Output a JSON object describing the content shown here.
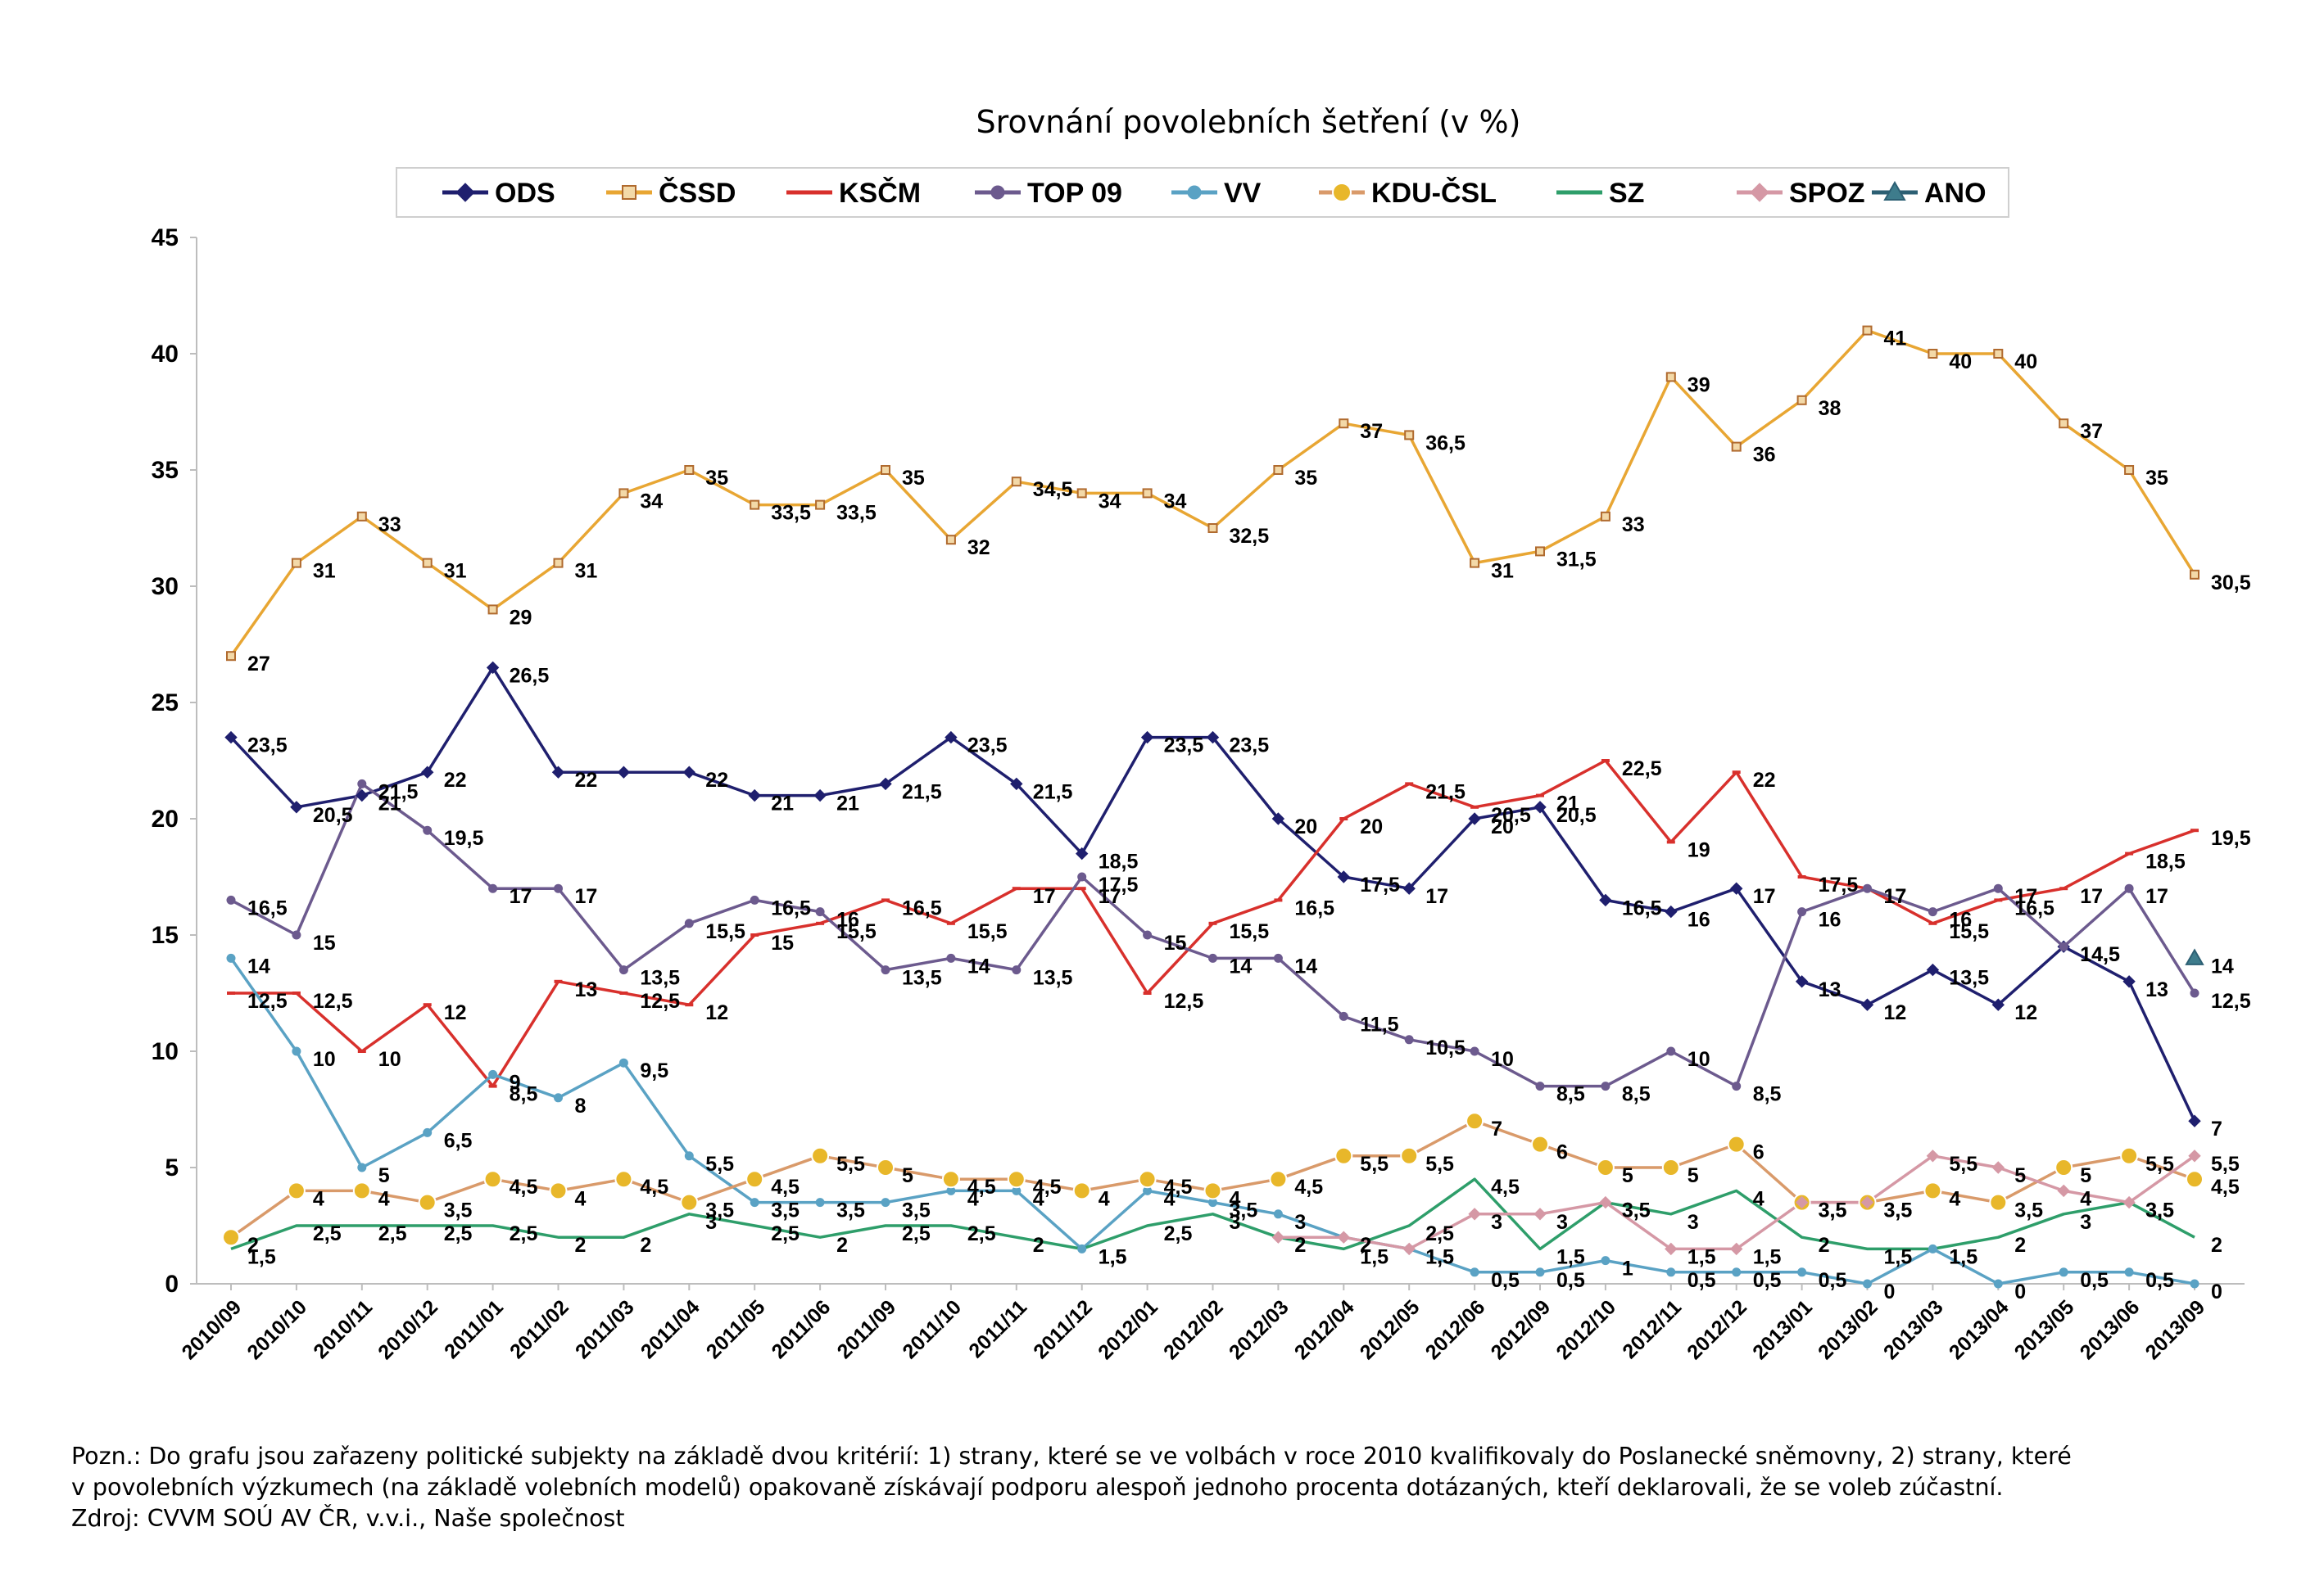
{
  "chart_data": {
    "type": "line",
    "title": "Srovnání povolebních šetření (v %)",
    "ylim": [
      0,
      45
    ],
    "yticks": [
      0,
      5,
      10,
      15,
      20,
      25,
      30,
      35,
      40,
      45
    ],
    "grid": false,
    "legend_position": "top",
    "categories": [
      "2010/09",
      "2010/10",
      "2010/11",
      "2010/12",
      "2011/01",
      "2011/02",
      "2011/03",
      "2011/04",
      "2011/05",
      "2011/06",
      "2011/09",
      "2011/10",
      "2011/11",
      "2011/12",
      "2012/01",
      "2012/02",
      "2012/03",
      "2012/04",
      "2012/05",
      "2012/06",
      "2012/09",
      "2012/10",
      "2012/11",
      "2012/12",
      "2013/01",
      "2013/02",
      "2013/03",
      "2013/04",
      "2013/05",
      "2013/06",
      "2013/09"
    ],
    "series": [
      {
        "name": "ODS",
        "color": "#1f1f6e",
        "marker": "diamond",
        "values": [
          23.5,
          20.5,
          21,
          22,
          26.5,
          22,
          22,
          22,
          21,
          21,
          21.5,
          23.5,
          21.5,
          18.5,
          23.5,
          23.5,
          20,
          17.5,
          17,
          20,
          20.5,
          16.5,
          16,
          17,
          13,
          12,
          13.5,
          12,
          14.5,
          13,
          7
        ],
        "labels": [
          "23,5",
          "20,5",
          "21",
          "22",
          "26,5",
          "22",
          "",
          "22",
          "21",
          "21",
          "21,5",
          "23,5",
          "21,5",
          "18,5",
          "23,5",
          "23,5",
          "20",
          "17,5",
          "17",
          "20",
          "20,5",
          "16,5",
          "16",
          "17",
          "13",
          "12",
          "13,5",
          "12",
          "14,5",
          "13",
          "7"
        ]
      },
      {
        "name": "ČSSD",
        "color": "#e8a633",
        "marker": "square",
        "values": [
          27,
          31,
          33,
          31,
          29,
          31,
          34,
          35,
          33.5,
          33.5,
          35,
          32,
          34.5,
          34,
          34,
          32.5,
          35,
          37,
          36.5,
          31,
          31.5,
          33,
          39,
          36,
          38,
          41,
          40,
          40,
          37,
          35,
          30.5
        ],
        "labels": [
          "27",
          "31",
          "33",
          "31",
          "29",
          "31",
          "34",
          "35",
          "33,5",
          "33,5",
          "35",
          "32",
          "34,5",
          "34",
          "34",
          "32,5",
          "35",
          "37",
          "36,5",
          "31",
          "31,5",
          "33",
          "39",
          "36",
          "38",
          "41",
          "40",
          "40",
          "37",
          "35",
          "30,5"
        ]
      },
      {
        "name": "KSČM",
        "color": "#d8302c",
        "marker": "dash",
        "values": [
          12.5,
          12.5,
          10,
          12,
          8.5,
          13,
          12.5,
          12,
          15,
          15.5,
          16.5,
          15.5,
          17,
          17,
          12.5,
          15.5,
          16.5,
          20,
          21.5,
          20.5,
          21,
          22.5,
          19,
          22,
          17.5,
          17,
          15.5,
          16.5,
          17,
          18.5,
          19.5
        ],
        "labels": [
          "12,5",
          "12,5",
          "10",
          "12",
          "8,5",
          "13",
          "12,5",
          "12",
          "15",
          "15,5",
          "16,5",
          "15,5",
          "17",
          "17",
          "12,5",
          "15,5",
          "16,5",
          "20",
          "21,5",
          "20,5",
          "21",
          "22,5",
          "19",
          "22",
          "17,5",
          "17",
          "15,5",
          "16,5",
          "17",
          "18,5",
          "19,5"
        ]
      },
      {
        "name": "TOP 09",
        "color": "#6c5a8e",
        "marker": "circle",
        "values": [
          16.5,
          15,
          21.5,
          19.5,
          17,
          17,
          13.5,
          15.5,
          16.5,
          16,
          13.5,
          14,
          13.5,
          17.5,
          15,
          14,
          14,
          11.5,
          10.5,
          10,
          8.5,
          8.5,
          10,
          8.5,
          16,
          17,
          16,
          17,
          14.5,
          17,
          12.5
        ],
        "labels": [
          "16,5",
          "15",
          "21,5",
          "19,5",
          "17",
          "17",
          "13,5",
          "15,5",
          "16,5",
          "16",
          "13,5",
          "14",
          "13,5",
          "17,5",
          "15",
          "14",
          "14",
          "11,5",
          "10,5",
          "10",
          "8,5",
          "8,5",
          "10",
          "8,5",
          "16",
          "17",
          "16",
          "17",
          "14,5",
          "17",
          "12,5"
        ]
      },
      {
        "name": "VV",
        "color": "#5aa2c4",
        "marker": "circle",
        "values": [
          14,
          10,
          5,
          6.5,
          9,
          8,
          9.5,
          5.5,
          3.5,
          3.5,
          3.5,
          4,
          4,
          1.5,
          4,
          3.5,
          3,
          2,
          1.5,
          0.5,
          0.5,
          1,
          0.5,
          0.5,
          0.5,
          0,
          1.5,
          0,
          0.5,
          0.5,
          0
        ],
        "labels": [
          "14",
          "10",
          "5",
          "6,5",
          "9",
          "8",
          "9,5",
          "5,5",
          "3,5",
          "3,5",
          "3,5",
          "4",
          "4",
          "1,5",
          "4",
          "3,5",
          "3",
          "2",
          "1,5",
          "0,5",
          "0,5",
          "1",
          "0,5",
          "0,5",
          "0,5",
          "0",
          "1,5",
          "0",
          "0,5",
          "0,5",
          "0"
        ]
      },
      {
        "name": "KDU-ČSL",
        "color": "#e8b72a",
        "marker": "bigcircle",
        "line_color": "#d99a6a",
        "values": [
          2,
          4,
          4,
          3.5,
          4.5,
          4,
          4.5,
          3.5,
          4.5,
          5.5,
          5,
          4.5,
          4.5,
          4,
          4.5,
          4,
          4.5,
          5.5,
          5.5,
          7,
          6,
          5,
          5,
          6,
          3.5,
          3.5,
          4,
          3.5,
          5,
          5.5,
          4.5
        ],
        "labels": [
          "2",
          "4",
          "4",
          "3,5",
          "4,5",
          "4",
          "4,5",
          "3,5",
          "4,5",
          "5,5",
          "5",
          "4,5",
          "4,5",
          "4",
          "4,5",
          "4",
          "4,5",
          "5,5",
          "5,5",
          "7",
          "6",
          "5",
          "5",
          "6",
          "3,5",
          "3,5",
          "4",
          "3,5",
          "5",
          "5,5",
          "4,5"
        ]
      },
      {
        "name": "SZ",
        "color": "#2e9e6a",
        "marker": "none",
        "values": [
          1.5,
          2.5,
          2.5,
          2.5,
          2.5,
          2,
          2,
          3,
          2.5,
          2,
          2.5,
          2.5,
          2,
          1.5,
          2.5,
          3,
          2,
          1.5,
          2.5,
          4.5,
          1.5,
          3.5,
          3,
          4,
          2,
          1.5,
          1.5,
          2,
          3,
          3.5,
          2
        ],
        "labels": [
          "1,5",
          "2,5",
          "2,5",
          "2,5",
          "2,5",
          "2",
          "2",
          "3",
          "2,5",
          "2",
          "2,5",
          "2,5",
          "2",
          "1,5",
          "2,5",
          "3",
          "2",
          "1,5",
          "2,5",
          "4,5",
          "1,5",
          "3,5",
          "3",
          "4",
          "2",
          "1,5",
          "1,5",
          "2",
          "3",
          "3,5",
          "2"
        ]
      },
      {
        "name": "SPOZ",
        "color": "#d598a5",
        "marker": "diamond",
        "values": [
          null,
          null,
          null,
          null,
          null,
          null,
          null,
          null,
          null,
          null,
          null,
          null,
          null,
          null,
          null,
          null,
          2,
          2,
          1.5,
          3,
          3,
          3.5,
          1.5,
          1.5,
          3.5,
          3.5,
          5.5,
          5,
          4,
          3.5,
          5.5
        ],
        "labels": [
          "",
          "",
          "",
          "",
          "",
          "",
          "",
          "",
          "",
          "",
          "",
          "",
          "",
          "",
          "",
          "",
          "2",
          "2",
          "1,5",
          "3",
          "3",
          "3,5",
          "1,5",
          "1,5",
          "3,5",
          "3,5",
          "5,5",
          "5",
          "4",
          "3,5",
          "5,5"
        ]
      },
      {
        "name": "ANO",
        "color": "#2c5f73",
        "marker": "triangle",
        "fill": "#3e7c8c",
        "values": [
          null,
          null,
          null,
          null,
          null,
          null,
          null,
          null,
          null,
          null,
          null,
          null,
          null,
          null,
          null,
          null,
          null,
          null,
          null,
          null,
          null,
          null,
          null,
          null,
          null,
          null,
          null,
          null,
          null,
          null,
          14
        ],
        "labels": [
          "",
          "",
          "",
          "",
          "",
          "",
          "",
          "",
          "",
          "",
          "",
          "",
          "",
          "",
          "",
          "",
          "",
          "",
          "",
          "",
          "",
          "",
          "",
          "",
          "",
          "",
          "",
          "",
          "",
          "",
          "14"
        ]
      }
    ]
  },
  "note": {
    "line1": "Pozn.: Do grafu jsou zařazeny politické subjekty na základě dvou kritérií: 1) strany, které se ve volbách v roce 2010 kvalifikovaly do Poslanecké sněmovny, 2) strany, které",
    "line2": "v povolebních výzkumech (na základě volebních modelů) opakovaně získávají podporu alespoň jednoho procenta dotázaných, kteří deklarovali, že se voleb zúčastní.",
    "source": "Zdroj: CVVM SOÚ AV ČR, v.v.i., Naše společnost"
  }
}
